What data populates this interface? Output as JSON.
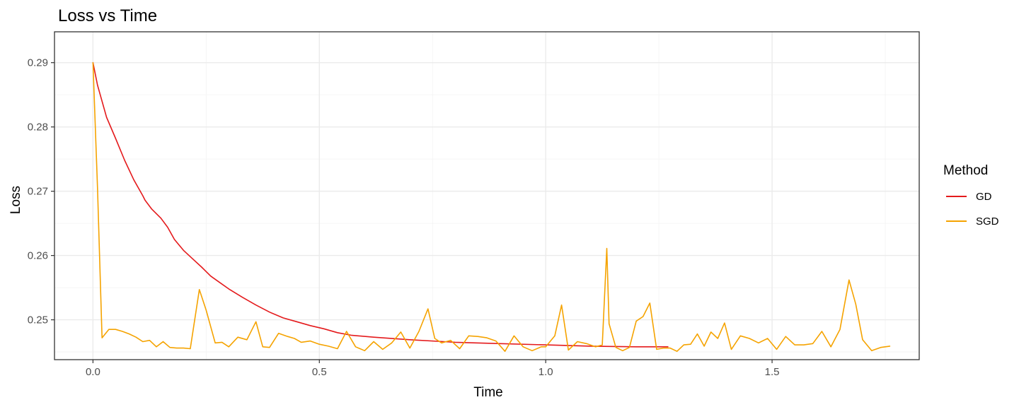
{
  "chart_data": {
    "type": "line",
    "title": "Loss vs Time",
    "xlabel": "Time",
    "ylabel": "Loss",
    "xlim": [
      -0.085,
      1.825
    ],
    "ylim": [
      0.2438,
      0.2948
    ],
    "x_major_ticks": [
      0.0,
      0.5,
      1.0,
      1.5
    ],
    "x_tick_labels": [
      "0.0",
      "0.5",
      "1.0",
      "1.5"
    ],
    "x_minor_ticks": [
      0.25,
      0.75,
      1.25,
      1.75
    ],
    "y_major_ticks": [
      0.25,
      0.26,
      0.27,
      0.28,
      0.29
    ],
    "y_tick_labels": [
      "0.25",
      "0.26",
      "0.27",
      "0.28",
      "0.29"
    ],
    "y_minor_ticks": [
      0.245,
      0.255,
      0.265,
      0.275,
      0.285
    ],
    "grid": true,
    "legend": {
      "title": "Method",
      "position": "right"
    },
    "series": [
      {
        "name": "GD",
        "color": "#e41a1c",
        "x": [
          0.0,
          0.01,
          0.03,
          0.05,
          0.07,
          0.09,
          0.11,
          0.115,
          0.13,
          0.15,
          0.165,
          0.18,
          0.2,
          0.22,
          0.24,
          0.26,
          0.28,
          0.3,
          0.33,
          0.36,
          0.39,
          0.42,
          0.45,
          0.48,
          0.51,
          0.54,
          0.57,
          0.62,
          0.7,
          0.8,
          0.9,
          1.0,
          1.1,
          1.2,
          1.27
        ],
        "y": [
          0.29,
          0.2865,
          0.2815,
          0.2782,
          0.2748,
          0.2718,
          0.2693,
          0.2686,
          0.2672,
          0.2658,
          0.2644,
          0.2625,
          0.2608,
          0.2595,
          0.2582,
          0.2568,
          0.2558,
          0.2548,
          0.2535,
          0.2523,
          0.2512,
          0.2503,
          0.2497,
          0.2491,
          0.2486,
          0.248,
          0.2476,
          0.2473,
          0.2469,
          0.2465,
          0.2463,
          0.2461,
          0.2459,
          0.2458,
          0.2458
        ]
      },
      {
        "name": "SGD",
        "color": "#f5a300",
        "x": [
          0.0,
          0.01,
          0.02,
          0.035,
          0.05,
          0.065,
          0.08,
          0.095,
          0.11,
          0.125,
          0.14,
          0.155,
          0.17,
          0.185,
          0.2,
          0.215,
          0.235,
          0.25,
          0.27,
          0.285,
          0.3,
          0.32,
          0.34,
          0.36,
          0.375,
          0.39,
          0.41,
          0.43,
          0.445,
          0.46,
          0.48,
          0.5,
          0.52,
          0.54,
          0.56,
          0.58,
          0.6,
          0.62,
          0.64,
          0.66,
          0.68,
          0.7,
          0.72,
          0.74,
          0.755,
          0.77,
          0.79,
          0.81,
          0.83,
          0.85,
          0.87,
          0.89,
          0.91,
          0.93,
          0.95,
          0.97,
          0.99,
          1.0,
          1.02,
          1.035,
          1.05,
          1.07,
          1.09,
          1.11,
          1.125,
          1.135,
          1.14,
          1.155,
          1.17,
          1.185,
          1.2,
          1.215,
          1.23,
          1.245,
          1.26,
          1.275,
          1.29,
          1.305,
          1.32,
          1.335,
          1.35,
          1.365,
          1.38,
          1.395,
          1.41,
          1.43,
          1.45,
          1.47,
          1.49,
          1.51,
          1.53,
          1.55,
          1.57,
          1.59,
          1.61,
          1.63,
          1.65,
          1.67,
          1.685,
          1.7,
          1.72,
          1.74,
          1.76
        ],
        "y": [
          0.29,
          0.2705,
          0.2472,
          0.2485,
          0.2485,
          0.2482,
          0.2478,
          0.2473,
          0.2466,
          0.2468,
          0.2458,
          0.2466,
          0.2457,
          0.2456,
          0.2456,
          0.2455,
          0.2547,
          0.2515,
          0.2464,
          0.2465,
          0.2458,
          0.2473,
          0.2469,
          0.2497,
          0.2458,
          0.2457,
          0.2479,
          0.2474,
          0.2471,
          0.2465,
          0.2467,
          0.2462,
          0.2459,
          0.2455,
          0.2482,
          0.2458,
          0.2452,
          0.2466,
          0.2454,
          0.2464,
          0.2481,
          0.2456,
          0.2482,
          0.2517,
          0.2471,
          0.2464,
          0.2468,
          0.2455,
          0.2475,
          0.2474,
          0.2472,
          0.2467,
          0.2451,
          0.2475,
          0.2458,
          0.2452,
          0.2458,
          0.2458,
          0.2475,
          0.2523,
          0.2453,
          0.2466,
          0.2463,
          0.2458,
          0.2461,
          0.2611,
          0.2494,
          0.2457,
          0.2452,
          0.2457,
          0.2498,
          0.2505,
          0.2526,
          0.2454,
          0.2456,
          0.2456,
          0.2451,
          0.2461,
          0.2462,
          0.2478,
          0.2459,
          0.2481,
          0.2471,
          0.2495,
          0.2454,
          0.2475,
          0.2471,
          0.2464,
          0.2471,
          0.2454,
          0.2474,
          0.2461,
          0.2461,
          0.2463,
          0.2482,
          0.2458,
          0.2485,
          0.2562,
          0.2524,
          0.2469,
          0.2452,
          0.2457,
          0.2459
        ]
      }
    ]
  }
}
